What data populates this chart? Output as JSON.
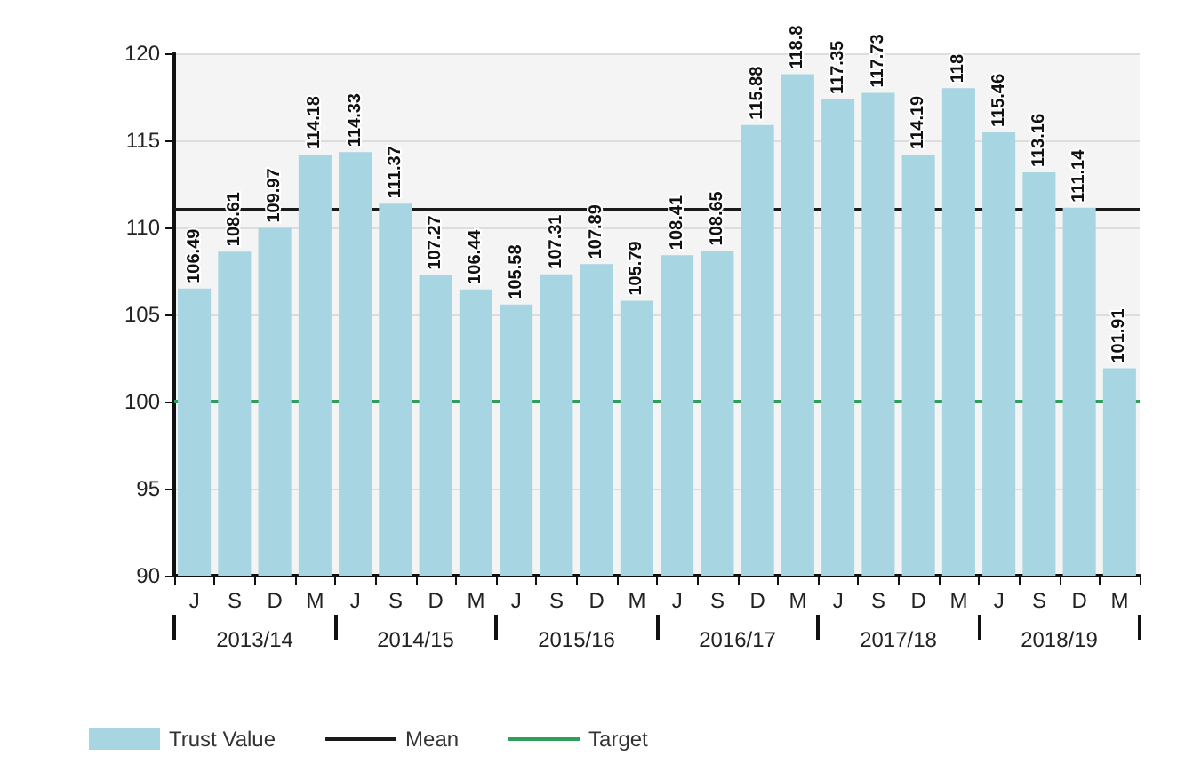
{
  "chart_data": {
    "type": "bar",
    "categories": [
      "J",
      "S",
      "D",
      "M",
      "J",
      "S",
      "D",
      "M",
      "J",
      "S",
      "D",
      "M",
      "J",
      "S",
      "D",
      "M",
      "J",
      "S",
      "D",
      "M",
      "J",
      "S",
      "D",
      "M"
    ],
    "series": [
      {
        "name": "Trust Value",
        "color": "#a8d5e2",
        "values": [
          106.49,
          108.61,
          109.97,
          114.18,
          114.33,
          111.37,
          107.27,
          106.44,
          105.58,
          107.31,
          107.89,
          105.79,
          108.41,
          108.65,
          115.88,
          118.8,
          117.35,
          117.73,
          114.19,
          118,
          115.46,
          113.16,
          111.14,
          101.91
        ]
      }
    ],
    "ref_lines": [
      {
        "axis": "y",
        "value": 111,
        "label": "Mean",
        "color": "#1a1a1a"
      },
      {
        "axis": "y",
        "value": 100,
        "label": "Target",
        "color": "#2e9e5a"
      }
    ],
    "annotations": [
      "2013/14",
      "2014/15",
      "2015/16",
      "2016/17",
      "2017/18",
      "2018/19"
    ],
    "ylim": [
      90,
      120
    ],
    "yticks": [
      90,
      95,
      100,
      105,
      110,
      115,
      120
    ],
    "data_labels": true,
    "grid": "y",
    "legend": "bottom left"
  }
}
